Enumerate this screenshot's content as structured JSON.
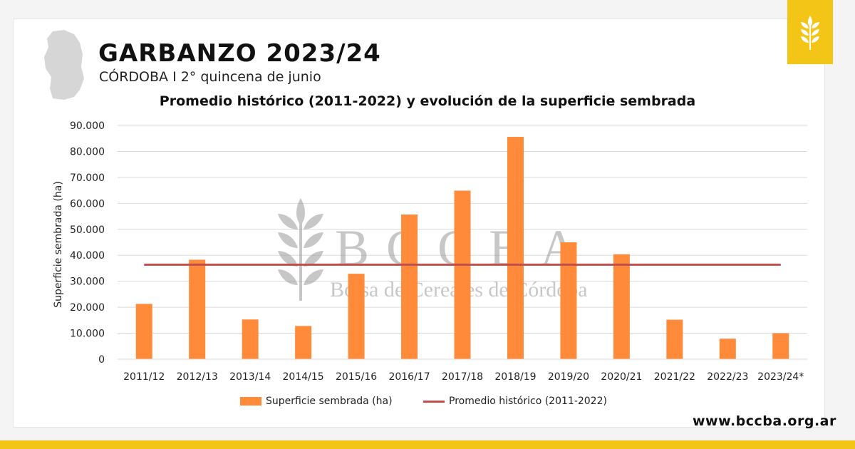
{
  "header": {
    "title": "GARBANZO 2023/24",
    "subtitle": "CÓRDOBA I 2° quincena de junio"
  },
  "watermark": {
    "logo_text": "BCCBA",
    "org_name": "Bolsa de Cereales de Córdoba"
  },
  "footer": {
    "website": "www.bccba.org.ar"
  },
  "colors": {
    "accent": "#f2c516",
    "bar": "#ff8a3a",
    "average_line": "#c0504d"
  },
  "icons": {
    "region_map": "cordoba-province-map-icon",
    "brand": "wheat-logo-icon"
  },
  "chart_data": {
    "type": "bar",
    "title": "Promedio histórico (2011-2022) y evolución de la superficie sembrada",
    "ylabel": "Superficie sembrada (ha)",
    "xlabel": "",
    "ylim": [
      0,
      90000
    ],
    "yticks": [
      0,
      10000,
      20000,
      30000,
      40000,
      50000,
      60000,
      70000,
      80000,
      90000
    ],
    "ytick_labels": [
      "0",
      "10.000",
      "20.000",
      "30.000",
      "40.000",
      "50.000",
      "60.000",
      "70.000",
      "80.000",
      "90.000"
    ],
    "grid": true,
    "legend_position": "bottom",
    "categories": [
      "2011/12",
      "2012/13",
      "2013/14",
      "2014/15",
      "2015/16",
      "2016/17",
      "2017/18",
      "2018/19",
      "2019/20",
      "2020/21",
      "2021/22",
      "2022/23",
      "2023/24*"
    ],
    "series": [
      {
        "name": "Superficie sembrada (ha)",
        "type": "bar",
        "values": [
          21300,
          38300,
          15300,
          12800,
          32900,
          55700,
          64900,
          85600,
          45000,
          40400,
          15200,
          7900,
          10000
        ]
      },
      {
        "name": "Promedio histórico (2011-2022)",
        "type": "line",
        "value": 36400
      }
    ]
  }
}
